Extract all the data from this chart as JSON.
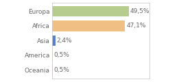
{
  "categories": [
    "Europa",
    "Africa",
    "Asia",
    "America",
    "Oceania"
  ],
  "values": [
    49.5,
    47.1,
    2.4,
    0.5,
    0.5
  ],
  "labels": [
    "49,5%",
    "47,1%",
    "2,4%",
    "0,5%",
    "0,5%"
  ],
  "bar_colors": [
    "#b5cc8e",
    "#f0bf84",
    "#5b7ec9",
    "#f0d8b0",
    "#f0a0a0"
  ],
  "background_color": "#ffffff",
  "text_color": "#666666",
  "label_fontsize": 6.5,
  "tick_fontsize": 6.5,
  "bar_height": 0.72,
  "xlim": [
    0,
    63
  ],
  "border_color": "#cccccc"
}
